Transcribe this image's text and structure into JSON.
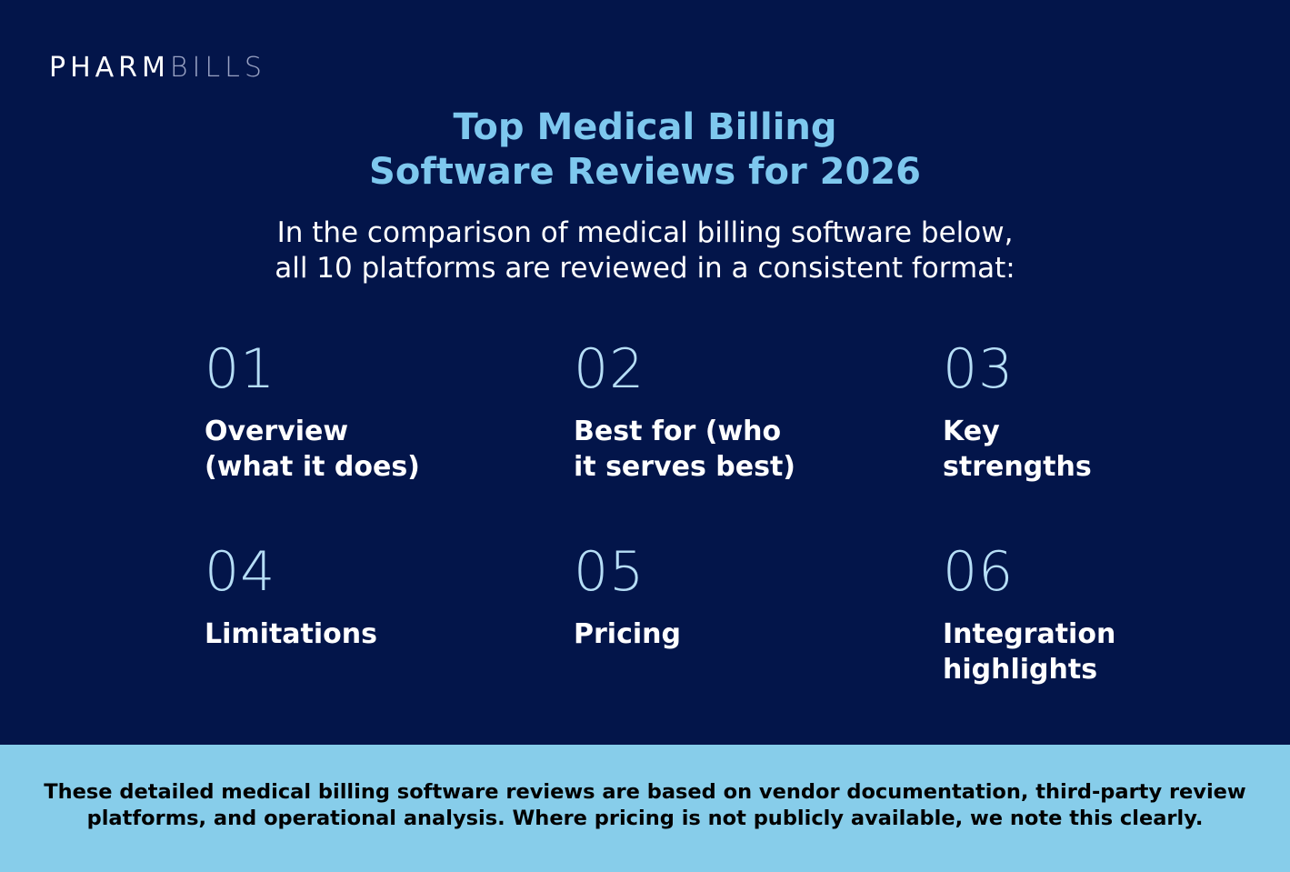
{
  "brand": {
    "logo_part1": "PHARM",
    "logo_part2": "BILLS"
  },
  "header": {
    "title_line1": "Top Medical Billing",
    "title_line2": "Software Reviews for 2026",
    "subtitle_line1": "In the comparison of medical billing software below,",
    "subtitle_line2": "all 10 platforms are reviewed in a consistent format:"
  },
  "items": [
    {
      "number": "01",
      "line1": "Overview",
      "line2": "(what it does)"
    },
    {
      "number": "02",
      "line1": "Best for (who",
      "line2": "it serves best)"
    },
    {
      "number": "03",
      "line1": "Key",
      "line2": "strengths"
    },
    {
      "number": "04",
      "line1": "Limitations",
      "line2": ""
    },
    {
      "number": "05",
      "line1": "Pricing",
      "line2": ""
    },
    {
      "number": "06",
      "line1": "Integration",
      "line2": "highlights"
    }
  ],
  "footer": {
    "line1": "These detailed medical billing software reviews are based on vendor documentation, third-party review",
    "line2": "platforms, and operational analysis. Where pricing is not publicly available, we note this clearly."
  },
  "colors": {
    "background": "#03154a",
    "title": "#7ec8ee",
    "number": "#b6def6",
    "footer_bg": "#87cdea"
  }
}
